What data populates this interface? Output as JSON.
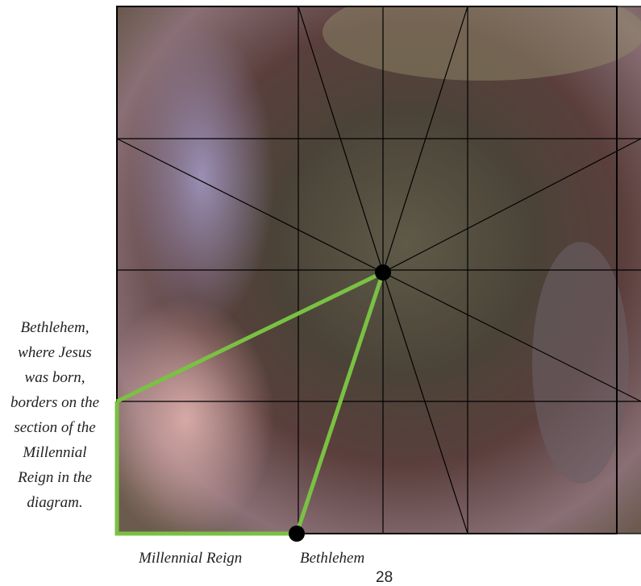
{
  "caption": {
    "lines": [
      "Bethlehem,",
      "where Jesus",
      "was born,",
      "borders on the",
      "section of the",
      "Millennial",
      "Reign in the",
      "diagram."
    ]
  },
  "labels": {
    "millennial_reign": "Millennial Reign",
    "bethlehem": "Bethlehem"
  },
  "page_number": "28"
}
